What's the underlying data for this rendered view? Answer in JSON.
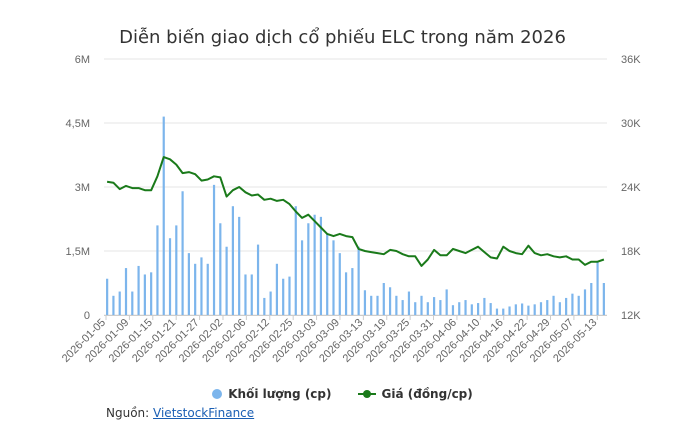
{
  "chart_data": {
    "type": "bar+line",
    "title": "Diễn biến giao dịch cổ phiếu ELC trong năm 2026",
    "x_tick_labels": [
      "2026-01-05",
      "2026-01-09",
      "2026-01-15",
      "2026-01-21",
      "2026-01-27",
      "2026-02-02",
      "2026-02-06",
      "2026-02-12",
      "2026-02-25",
      "2026-03-03",
      "2026-03-09",
      "2026-03-13",
      "2026-03-19",
      "2026-03-25",
      "2026-03-31",
      "2026-04-06",
      "2026-04-10",
      "2026-04-16",
      "2026-04-22",
      "2026-04-29",
      "2026-05-07",
      "2026-05-13"
    ],
    "y_left": {
      "ticks": [
        "0",
        "1,5M",
        "3M",
        "4,5M",
        "6M"
      ],
      "min": 0,
      "max": 6000000
    },
    "y_right": {
      "ticks": [
        "12K",
        "18K",
        "24K",
        "30K",
        "36K"
      ],
      "min": 12000,
      "max": 36000
    },
    "colors": {
      "volume": "#7cb5ec",
      "price": "#1a7a1a"
    },
    "series": [
      {
        "name": "Khối lượng (cp)",
        "type": "column",
        "axis": "left",
        "values": [
          850000,
          450000,
          550000,
          1100000,
          550000,
          1150000,
          950000,
          1000000,
          2100000,
          4650000,
          1800000,
          2100000,
          2900000,
          1450000,
          1200000,
          1350000,
          1200000,
          3050000,
          2150000,
          1600000,
          2550000,
          2300000,
          950000,
          950000,
          1650000,
          400000,
          550000,
          1200000,
          850000,
          900000,
          2550000,
          1750000,
          2150000,
          2350000,
          2300000,
          1900000,
          1750000,
          1450000,
          1000000,
          1100000,
          1600000,
          580000,
          450000,
          450000,
          750000,
          650000,
          450000,
          350000,
          550000,
          300000,
          450000,
          300000,
          420000,
          350000,
          600000,
          230000,
          300000,
          350000,
          250000,
          280000,
          400000,
          280000,
          150000,
          150000,
          200000,
          250000,
          270000,
          220000,
          250000,
          300000,
          350000,
          450000,
          300000,
          400000,
          500000,
          450000,
          600000,
          750000,
          1250000,
          750000
        ]
      },
      {
        "name": "Giá (đồng/cp)",
        "type": "line",
        "axis": "right",
        "values": [
          24500,
          24400,
          23800,
          24100,
          23900,
          23900,
          23700,
          23700,
          25000,
          26800,
          26600,
          26100,
          25300,
          25400,
          25200,
          24600,
          24700,
          25000,
          24900,
          23100,
          23700,
          24000,
          23500,
          23200,
          23300,
          22800,
          22900,
          22700,
          22800,
          22400,
          21700,
          21100,
          21400,
          20800,
          20200,
          19600,
          19400,
          19600,
          19400,
          19300,
          18200,
          18000,
          17900,
          17800,
          17700,
          18100,
          18000,
          17700,
          17500,
          17500,
          16600,
          17200,
          18100,
          17600,
          17600,
          18200,
          18000,
          17800,
          18100,
          18400,
          17900,
          17400,
          17300,
          18400,
          18000,
          17800,
          17700,
          18500,
          17800,
          17600,
          17700,
          17500,
          17400,
          17500,
          17200,
          17200,
          16700,
          17000,
          17000,
          17200
        ]
      }
    ]
  },
  "legend": {
    "volume_label": "Khối lượng (cp)",
    "price_label": "Giá (đồng/cp)"
  },
  "source": {
    "label": "Nguồn:",
    "link_text": "VietstockFinance"
  }
}
